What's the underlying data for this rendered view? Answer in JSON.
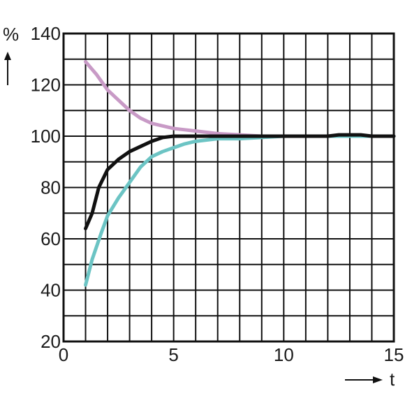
{
  "chart_data": {
    "type": "line",
    "title": "",
    "xlabel": "t",
    "ylabel": "%",
    "xlim": [
      0,
      15
    ],
    "ylim": [
      20,
      140
    ],
    "x_ticks": [
      0,
      5,
      10,
      15
    ],
    "y_ticks": [
      20,
      40,
      60,
      80,
      100,
      120,
      140
    ],
    "x_grid_step": 1,
    "y_grid_step": 10,
    "grid": true,
    "legend": "none",
    "series": [
      {
        "color": "#c89ac6",
        "x": [
          1,
          1.5,
          2,
          2.5,
          3,
          3.5,
          4,
          4.5,
          5,
          5.5,
          6,
          7,
          8,
          9,
          10,
          11,
          12,
          13,
          14,
          15
        ],
        "y": [
          129,
          124,
          118,
          114,
          110,
          107,
          105,
          104,
          103,
          102.5,
          102,
          101,
          100.5,
          100,
          100,
          100,
          100,
          100,
          100,
          100
        ]
      },
      {
        "color": "#6cc4c4",
        "x": [
          1,
          1.3,
          1.7,
          2,
          2.5,
          3,
          3.5,
          4,
          4.5,
          5,
          5.5,
          6,
          7,
          8,
          9,
          10,
          11,
          12,
          13,
          14,
          15
        ],
        "y": [
          42,
          52,
          62,
          69,
          76,
          82,
          88,
          92,
          94,
          95.5,
          97,
          98,
          99,
          99,
          99.5,
          100,
          100,
          100,
          100,
          100,
          100
        ]
      },
      {
        "color": "#111111",
        "x": [
          1,
          1.3,
          1.6,
          2,
          2.5,
          3,
          3.5,
          4,
          4.5,
          5,
          6,
          7,
          8,
          9,
          10,
          11,
          12,
          12.5,
          13,
          13.5,
          14,
          15
        ],
        "y": [
          64,
          70,
          80,
          87,
          91,
          94,
          96,
          98,
          99.5,
          100,
          100,
          100,
          100,
          100,
          100,
          100,
          100,
          100.5,
          100.5,
          100.5,
          100,
          100
        ]
      }
    ]
  }
}
